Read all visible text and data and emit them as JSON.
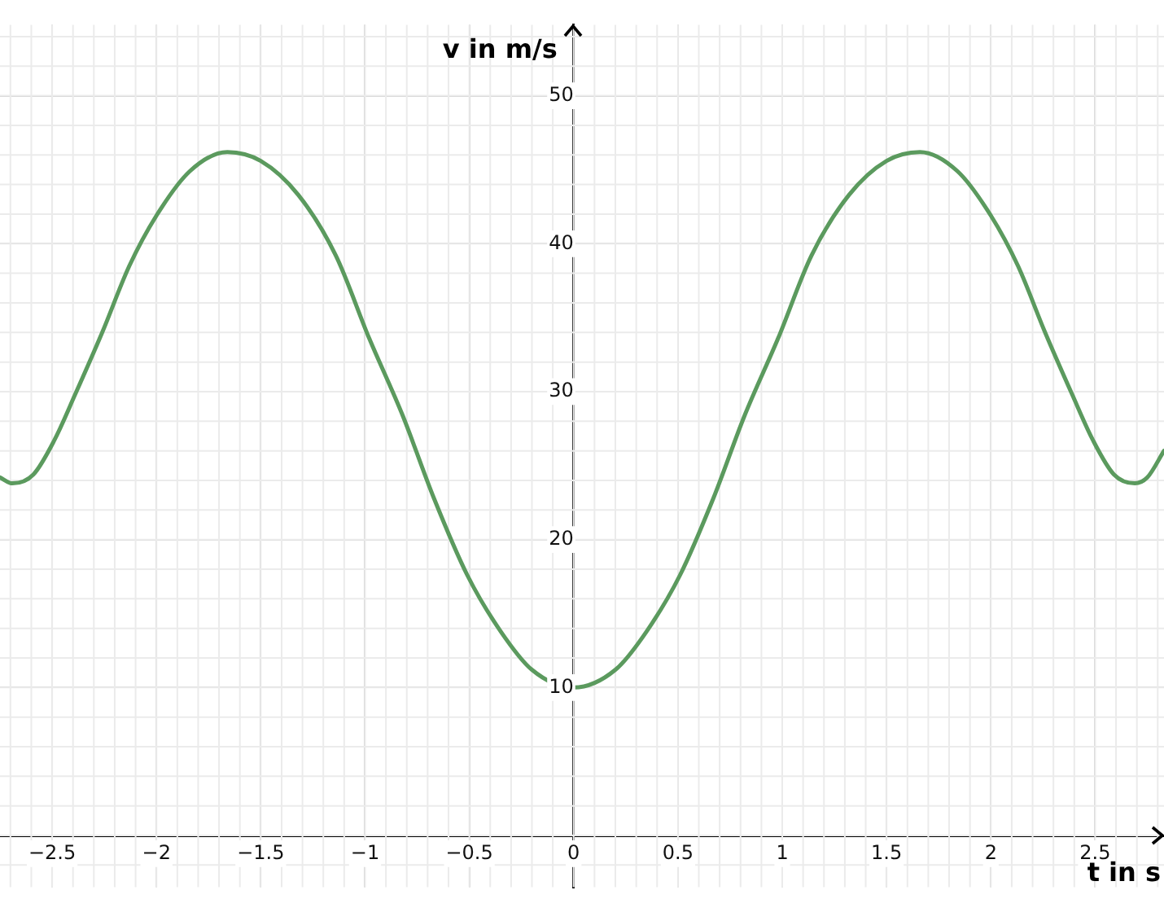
{
  "chart_data": {
    "type": "line",
    "xlabel": "t in s",
    "ylabel": "v in m/s",
    "x": [
      -2.75,
      -2.69,
      -2.59,
      -2.49,
      -2.39,
      -2.26,
      -2.13,
      -2.0,
      -1.84,
      -1.66,
      -1.5,
      -1.32,
      -1.14,
      -0.98,
      -0.82,
      -0.67,
      -0.51,
      -0.35,
      -0.2,
      0,
      0.2,
      0.35,
      0.51,
      0.67,
      0.82,
      0.98,
      1.14,
      1.32,
      1.5,
      1.66,
      1.84,
      2.0,
      2.13,
      2.26,
      2.39,
      2.49,
      2.59,
      2.69,
      2.75,
      2.83
    ],
    "series": [
      {
        "color": "#5b9a5e",
        "values": [
          24.2,
          23.8,
          24.4,
          26.7,
          29.8,
          34.0,
          38.5,
          41.9,
          44.9,
          46.2,
          45.6,
          43.3,
          39.2,
          33.6,
          28.4,
          22.8,
          17.6,
          13.8,
          11.2,
          10.0,
          11.2,
          13.8,
          17.6,
          22.8,
          28.4,
          33.6,
          39.2,
          43.3,
          45.6,
          46.2,
          44.9,
          41.9,
          38.5,
          34.0,
          29.8,
          26.7,
          24.4,
          23.8,
          24.2,
          26.0
        ]
      }
    ],
    "xlim": [
      -2.75,
      2.83
    ],
    "ylim": [
      -3.5,
      54.8
    ],
    "xticks": [
      {
        "value": -2.5,
        "label": "−2.5"
      },
      {
        "value": -2,
        "label": "−2"
      },
      {
        "value": -1.5,
        "label": "−1.5"
      },
      {
        "value": -1,
        "label": "−1"
      },
      {
        "value": -0.5,
        "label": "−0.5"
      },
      0,
      0.5,
      1,
      1.5,
      2,
      2.5
    ],
    "yticks": [
      10,
      20,
      30,
      40,
      50
    ],
    "grid": true,
    "legend": false,
    "marker": "none",
    "line_style": "solid"
  }
}
